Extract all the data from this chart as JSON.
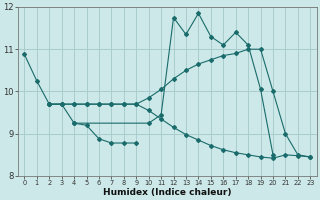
{
  "xlabel": "Humidex (Indice chaleur)",
  "xlim": [
    -0.5,
    23.5
  ],
  "ylim": [
    8,
    12
  ],
  "yticks": [
    8,
    9,
    10,
    11,
    12
  ],
  "xticks": [
    0,
    1,
    2,
    3,
    4,
    5,
    6,
    7,
    8,
    9,
    10,
    11,
    12,
    13,
    14,
    15,
    16,
    17,
    18,
    19,
    20,
    21,
    22,
    23
  ],
  "bg_color": "#cce8e8",
  "grid_color": "#aacccc",
  "line_color": "#1a6b6b",
  "series": [
    {
      "x": [
        0,
        1,
        2
      ],
      "y": [
        10.88,
        10.25,
        9.7
      ]
    },
    {
      "x": [
        2,
        3,
        4,
        10,
        11,
        12,
        13,
        14,
        15,
        16,
        17,
        18,
        19,
        20
      ],
      "y": [
        9.7,
        9.7,
        9.25,
        9.25,
        9.45,
        11.75,
        11.35,
        11.85,
        11.3,
        11.1,
        11.4,
        11.1,
        10.05,
        8.5
      ]
    },
    {
      "x": [
        2,
        3,
        4,
        5,
        6,
        7,
        8,
        9,
        10,
        11,
        12,
        13,
        14,
        15,
        16,
        17,
        18,
        19,
        20,
        21,
        22,
        23
      ],
      "y": [
        9.7,
        9.7,
        9.7,
        9.7,
        9.7,
        9.7,
        9.7,
        9.7,
        9.85,
        10.05,
        10.3,
        10.5,
        10.65,
        10.75,
        10.85,
        10.9,
        11.0,
        11.0,
        10.0,
        9.0,
        8.5,
        8.45
      ]
    },
    {
      "x": [
        2,
        3,
        4,
        5,
        6,
        7,
        8,
        9,
        10,
        11,
        12,
        13,
        14,
        15,
        16,
        17,
        18,
        19,
        20,
        21,
        22,
        23
      ],
      "y": [
        9.7,
        9.7,
        9.7,
        9.7,
        9.7,
        9.7,
        9.7,
        9.7,
        9.55,
        9.35,
        9.15,
        8.98,
        8.85,
        8.72,
        8.62,
        8.55,
        8.5,
        8.45,
        8.42,
        8.5,
        8.48,
        8.45
      ]
    },
    {
      "x": [
        4,
        5,
        6,
        7,
        8,
        9
      ],
      "y": [
        9.25,
        9.2,
        8.88,
        8.78,
        8.78,
        8.78
      ]
    }
  ]
}
